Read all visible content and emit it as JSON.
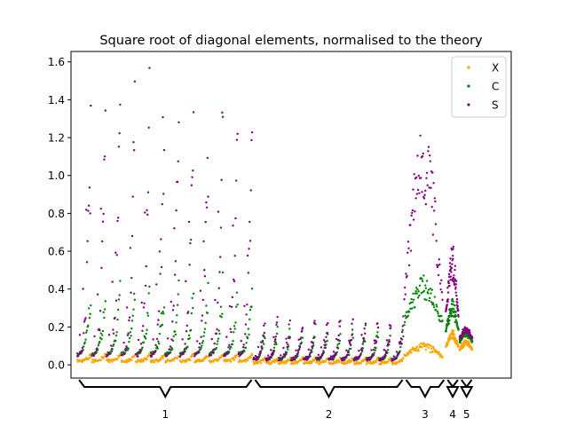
{
  "chart_data": {
    "type": "scatter",
    "title": "Square root of diagonal elements, normalised to the theory",
    "xlabel": "",
    "ylabel": "",
    "ylim": [
      -0.07,
      1.655
    ],
    "xlim": [
      -50,
      3450
    ],
    "yticks": [
      "0.0",
      "0.2",
      "0.4",
      "0.6",
      "0.8",
      "1.0",
      "1.2",
      "1.4",
      "1.6"
    ],
    "ytick_values": [
      0.0,
      0.2,
      0.4,
      0.6,
      0.8,
      1.0,
      1.2,
      1.4,
      1.6
    ],
    "grid": false,
    "legend_position": "top-right",
    "series": [
      {
        "name": "X",
        "color": "#ffa500"
      },
      {
        "name": "C",
        "color": "#008000"
      },
      {
        "name": "S",
        "color": "#800080"
      }
    ],
    "segments": [
      {
        "label": "1",
        "x_start": 0,
        "x_end": 1400
      },
      {
        "label": "2",
        "x_start": 1400,
        "x_end": 2600
      },
      {
        "label": "3",
        "x_start": 2600,
        "x_end": 2930
      },
      {
        "label": "4",
        "x_start": 2930,
        "x_end": 3040
      },
      {
        "label": "5",
        "x_start": 3040,
        "x_end": 3150
      }
    ],
    "region_profiles": [
      {
        "region": "1",
        "blocks": 12,
        "x_start": 0,
        "x_end": 1400,
        "X": [
          0.02,
          0.06
        ],
        "C": [
          0.06,
          0.48
        ],
        "S": [
          0.05,
          1.57
        ]
      },
      {
        "region": "2",
        "blocks": 12,
        "x_start": 1400,
        "x_end": 2600,
        "X": [
          0.01,
          0.04
        ],
        "C": [
          0.03,
          0.22
        ],
        "S": [
          0.03,
          0.27
        ]
      },
      {
        "region": "3",
        "blocks": 1,
        "x_start": 2600,
        "x_end": 2930,
        "X": [
          0.03,
          0.12
        ],
        "C": [
          0.18,
          0.47
        ],
        "S": [
          0.2,
          1.33
        ]
      },
      {
        "region": "4",
        "blocks": 1,
        "x_start": 2930,
        "x_end": 3040,
        "X": [
          0.08,
          0.18
        ],
        "C": [
          0.14,
          0.35
        ],
        "S": [
          0.2,
          0.64
        ]
      },
      {
        "region": "5",
        "blocks": 1,
        "x_start": 3040,
        "x_end": 3150,
        "X": [
          0.07,
          0.13
        ],
        "C": [
          0.11,
          0.18
        ],
        "S": [
          0.13,
          0.2
        ]
      }
    ]
  }
}
